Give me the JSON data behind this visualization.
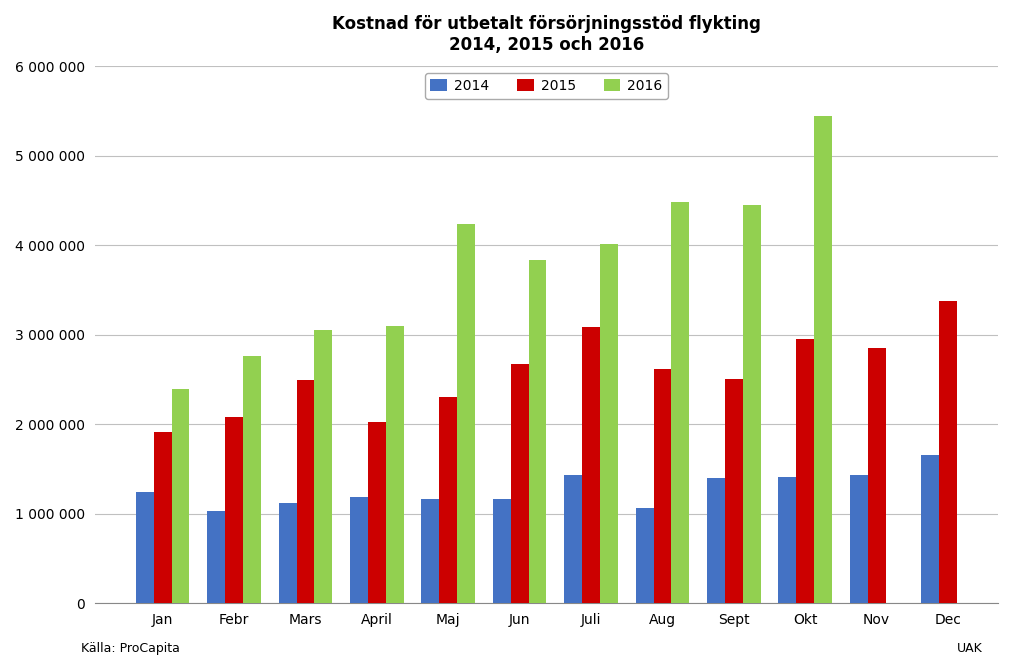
{
  "title": "Kostnad för utbetalt försörjningsstöd flykting\n2014, 2015 och 2016",
  "categories": [
    "Jan",
    "Febr",
    "Mars",
    "April",
    "Maj",
    "Jun",
    "Juli",
    "Aug",
    "Sept",
    "Okt",
    "Nov",
    "Dec"
  ],
  "series": {
    "2014": [
      1250000,
      1030000,
      1120000,
      1185000,
      1165000,
      1165000,
      1430000,
      1070000,
      1400000,
      1415000,
      1430000,
      1660000
    ],
    "2015": [
      1920000,
      2080000,
      2500000,
      2030000,
      2310000,
      2680000,
      3090000,
      2620000,
      2510000,
      2960000,
      2850000,
      3380000
    ],
    "2016": [
      2400000,
      2760000,
      3060000,
      3095000,
      4240000,
      3840000,
      4020000,
      4490000,
      4450000,
      5450000,
      null,
      null
    ]
  },
  "colors": {
    "2014": "#4472C4",
    "2015": "#CC0000",
    "2016": "#92D050"
  },
  "ylim": [
    0,
    6000000
  ],
  "yticks": [
    0,
    1000000,
    2000000,
    3000000,
    4000000,
    5000000,
    6000000
  ],
  "source_left": "Källa: ProCapita",
  "source_right": "UAK",
  "background_color": "#FFFFFF",
  "grid_color": "#C0C0C0",
  "title_fontsize": 12,
  "tick_fontsize": 10,
  "legend_fontsize": 10
}
